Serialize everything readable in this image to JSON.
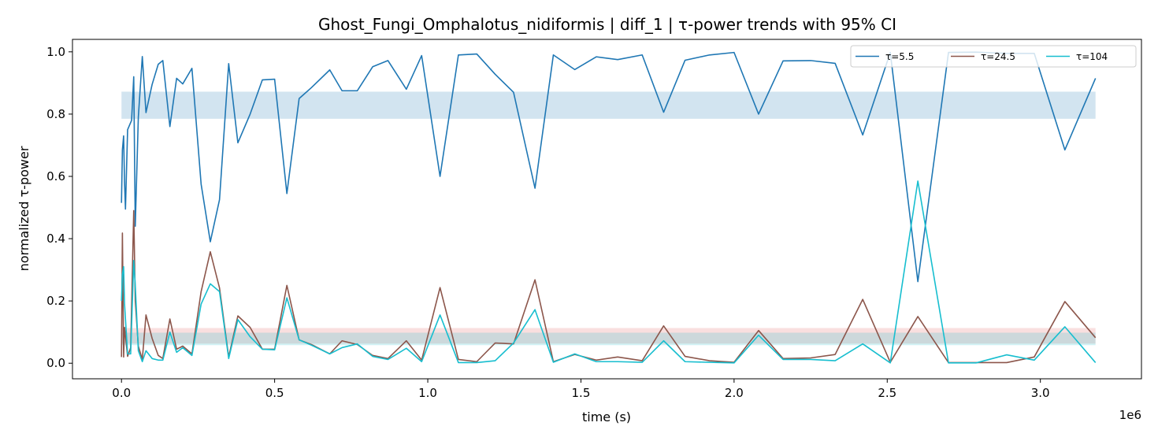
{
  "chart_data": {
    "type": "line",
    "title": "Ghost_Fungi_Omphalotus_nidiformis | diff_1 | τ-power trends with 95% CI",
    "xlabel": "time (s)",
    "ylabel": "normalized τ-power",
    "x_offset_label": "1e6",
    "xlim": [
      -0.16,
      3.33
    ],
    "ylim": [
      -0.05,
      1.04
    ],
    "xticks": [
      0.0,
      0.5,
      1.0,
      1.5,
      2.0,
      2.5,
      3.0
    ],
    "xtick_labels": [
      "0.0",
      "0.5",
      "1.0",
      "1.5",
      "2.0",
      "2.5",
      "3.0"
    ],
    "yticks": [
      0.0,
      0.2,
      0.4,
      0.6,
      0.8,
      1.0
    ],
    "ytick_labels": [
      "0.0",
      "0.2",
      "0.4",
      "0.6",
      "0.8",
      "1.0"
    ],
    "grid": false,
    "legend_position": "top-right",
    "ci_bands": [
      {
        "series": "τ=5.5",
        "x": [
          0.0,
          3.18
        ],
        "y": [
          0.785,
          0.872
        ],
        "color": "#1f77b4",
        "opacity": 0.2
      },
      {
        "series": "τ=24.5",
        "x": [
          0.0,
          3.18
        ],
        "y": [
          0.063,
          0.113
        ],
        "color": "#d62728",
        "opacity": 0.15
      },
      {
        "series": "τ=104",
        "x": [
          0.0,
          3.18
        ],
        "y": [
          0.058,
          0.098
        ],
        "color": "#17becf",
        "opacity": 0.2
      }
    ],
    "series": [
      {
        "name": "τ=5.5",
        "color": "#1f77b4",
        "x": [
          0.0,
          0.003,
          0.007,
          0.01,
          0.013,
          0.02,
          0.033,
          0.04,
          0.045,
          0.055,
          0.068,
          0.08,
          0.1,
          0.12,
          0.135,
          0.158,
          0.18,
          0.2,
          0.23,
          0.26,
          0.29,
          0.32,
          0.35,
          0.38,
          0.42,
          0.46,
          0.5,
          0.54,
          0.58,
          0.62,
          0.68,
          0.72,
          0.77,
          0.82,
          0.87,
          0.93,
          0.98,
          1.04,
          1.1,
          1.16,
          1.22,
          1.28,
          1.35,
          1.41,
          1.48,
          1.55,
          1.62,
          1.7,
          1.77,
          1.84,
          1.92,
          2.0,
          2.08,
          2.16,
          2.25,
          2.33,
          2.42,
          2.51,
          2.6,
          2.7,
          2.79,
          2.89,
          2.98,
          3.08,
          3.18
        ],
        "y": [
          0.515,
          0.685,
          0.73,
          0.58,
          0.495,
          0.75,
          0.78,
          0.92,
          0.44,
          0.79,
          0.985,
          0.805,
          0.895,
          0.96,
          0.972,
          0.76,
          0.915,
          0.897,
          0.947,
          0.575,
          0.39,
          0.525,
          0.962,
          0.708,
          0.8,
          0.91,
          0.912,
          0.545,
          0.85,
          0.885,
          0.942,
          0.875,
          0.875,
          0.952,
          0.972,
          0.88,
          0.988,
          0.6,
          0.99,
          0.993,
          0.928,
          0.87,
          0.562,
          0.99,
          0.943,
          0.984,
          0.975,
          0.99,
          0.806,
          0.973,
          0.99,
          0.998,
          0.8,
          0.971,
          0.972,
          0.963,
          0.733,
          0.998,
          0.262,
          0.998,
          0.999,
          0.995,
          0.995,
          0.685,
          0.915
        ]
      },
      {
        "name": "τ=24.5",
        "color": "#8c564b",
        "x": [
          0.0,
          0.003,
          0.007,
          0.01,
          0.02,
          0.03,
          0.04,
          0.045,
          0.055,
          0.068,
          0.08,
          0.1,
          0.12,
          0.135,
          0.158,
          0.18,
          0.2,
          0.23,
          0.26,
          0.29,
          0.32,
          0.35,
          0.38,
          0.42,
          0.46,
          0.5,
          0.54,
          0.58,
          0.62,
          0.68,
          0.72,
          0.77,
          0.82,
          0.87,
          0.93,
          0.98,
          1.04,
          1.1,
          1.16,
          1.22,
          1.28,
          1.35,
          1.41,
          1.48,
          1.55,
          1.62,
          1.7,
          1.77,
          1.84,
          1.92,
          2.0,
          2.08,
          2.16,
          2.25,
          2.33,
          2.42,
          2.51,
          2.6,
          2.7,
          2.79,
          2.89,
          2.98,
          3.08,
          3.18
        ],
        "y": [
          0.02,
          0.418,
          0.02,
          0.115,
          0.022,
          0.05,
          0.49,
          0.2,
          0.055,
          0.012,
          0.155,
          0.08,
          0.025,
          0.015,
          0.142,
          0.045,
          0.055,
          0.03,
          0.23,
          0.358,
          0.242,
          0.02,
          0.152,
          0.115,
          0.045,
          0.045,
          0.25,
          0.075,
          0.06,
          0.03,
          0.072,
          0.06,
          0.025,
          0.015,
          0.072,
          0.01,
          0.243,
          0.012,
          0.005,
          0.065,
          0.062,
          0.268,
          0.005,
          0.028,
          0.01,
          0.02,
          0.008,
          0.12,
          0.022,
          0.008,
          0.003,
          0.105,
          0.015,
          0.017,
          0.028,
          0.205,
          0.003,
          0.15,
          0.002,
          0.002,
          0.002,
          0.02,
          0.198,
          0.082
        ]
      },
      {
        "name": "τ=104",
        "color": "#17becf",
        "x": [
          0.0,
          0.003,
          0.007,
          0.01,
          0.02,
          0.03,
          0.04,
          0.045,
          0.055,
          0.068,
          0.08,
          0.1,
          0.12,
          0.135,
          0.158,
          0.18,
          0.2,
          0.23,
          0.26,
          0.29,
          0.32,
          0.35,
          0.38,
          0.42,
          0.46,
          0.5,
          0.54,
          0.58,
          0.62,
          0.68,
          0.72,
          0.77,
          0.82,
          0.87,
          0.93,
          0.98,
          1.04,
          1.1,
          1.16,
          1.22,
          1.28,
          1.35,
          1.41,
          1.48,
          1.55,
          1.62,
          1.7,
          1.77,
          1.84,
          1.92,
          2.0,
          2.08,
          2.16,
          2.25,
          2.33,
          2.42,
          2.51,
          2.6,
          2.7,
          2.79,
          2.89,
          2.98,
          3.08,
          3.18
        ],
        "y": [
          0.2,
          0.285,
          0.31,
          0.19,
          0.03,
          0.03,
          0.33,
          0.25,
          0.04,
          0.005,
          0.04,
          0.015,
          0.01,
          0.01,
          0.1,
          0.035,
          0.05,
          0.025,
          0.19,
          0.255,
          0.23,
          0.015,
          0.14,
          0.085,
          0.045,
          0.043,
          0.21,
          0.075,
          0.058,
          0.03,
          0.05,
          0.062,
          0.022,
          0.012,
          0.048,
          0.005,
          0.155,
          0.002,
          0.002,
          0.008,
          0.065,
          0.172,
          0.003,
          0.03,
          0.005,
          0.005,
          0.003,
          0.072,
          0.005,
          0.003,
          0.001,
          0.09,
          0.012,
          0.012,
          0.008,
          0.062,
          0.001,
          0.585,
          0.001,
          0.001,
          0.027,
          0.01,
          0.117,
          0.002
        ]
      }
    ]
  }
}
